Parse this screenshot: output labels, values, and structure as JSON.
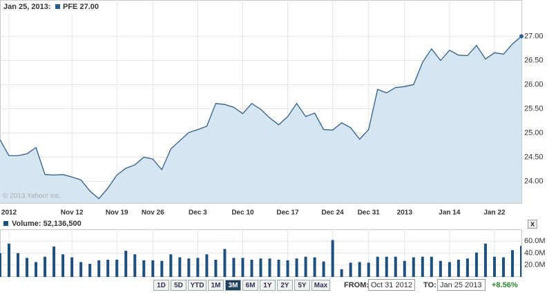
{
  "chart_data": [
    {
      "type": "area",
      "header_date": "Jan 25, 2013:",
      "watermark": "© 2013 Yahoo! Inc.",
      "categories": [
        null,
        "2012",
        null,
        null,
        null,
        null,
        null,
        null,
        "Nov 12",
        null,
        null,
        null,
        null,
        "Nov 19",
        null,
        null,
        null,
        "Nov 26",
        null,
        null,
        null,
        null,
        "Dec 3",
        null,
        null,
        null,
        null,
        "Dec 10",
        null,
        null,
        null,
        null,
        "Dec 17",
        null,
        null,
        null,
        null,
        "Dec 24",
        null,
        null,
        null,
        "Dec 31",
        null,
        null,
        null,
        "2013",
        null,
        null,
        null,
        null,
        "Jan 14",
        null,
        null,
        null,
        null,
        "Jan 22",
        null,
        null,
        null
      ],
      "series": [
        {
          "name": "PFE 27.00",
          "color": "#2d5d8c",
          "fill": "#d5e5f2",
          "values": [
            24.86,
            24.53,
            24.53,
            24.57,
            24.7,
            24.14,
            24.13,
            24.14,
            24.09,
            24.03,
            23.8,
            23.64,
            23.86,
            24.13,
            24.27,
            24.34,
            24.5,
            24.46,
            24.24,
            24.67,
            24.84,
            25.01,
            25.07,
            25.14,
            25.61,
            25.59,
            25.53,
            25.4,
            25.61,
            25.49,
            25.31,
            25.17,
            25.34,
            25.61,
            25.34,
            25.41,
            25.07,
            25.06,
            25.21,
            25.11,
            24.87,
            25.07,
            25.9,
            25.83,
            25.94,
            25.96,
            26.0,
            26.46,
            26.74,
            26.5,
            26.71,
            26.61,
            26.6,
            26.81,
            26.53,
            26.66,
            26.63,
            26.84,
            27.0
          ]
        }
      ],
      "ylim": [
        23.55,
        27.75
      ],
      "yticks": [
        {
          "value": 24,
          "label": "24.00"
        },
        {
          "value": 24.5,
          "label": "24.50"
        },
        {
          "value": 25,
          "label": "25.00"
        },
        {
          "value": 25.5,
          "label": "25.50"
        },
        {
          "value": 26,
          "label": "26.00"
        },
        {
          "value": 26.5,
          "label": "26.50"
        },
        {
          "value": 27,
          "label": "27.00"
        }
      ],
      "grid": true
    },
    {
      "type": "bar",
      "title": "Volume: 52,136,500",
      "color": "#1d4f80",
      "values": [
        40000000,
        56000000,
        40000000,
        32000000,
        25000000,
        34000000,
        51000000,
        38000000,
        33000000,
        25000000,
        22000000,
        28000000,
        29000000,
        29000000,
        44000000,
        38000000,
        28000000,
        28000000,
        27000000,
        38000000,
        33000000,
        31000000,
        32000000,
        38000000,
        29000000,
        47000000,
        32000000,
        32000000,
        29000000,
        31000000,
        31000000,
        29000000,
        28000000,
        31000000,
        34000000,
        33000000,
        26000000,
        62000000,
        13000000,
        24000000,
        25000000,
        24000000,
        34000000,
        34000000,
        34000000,
        27000000,
        33000000,
        34000000,
        34000000,
        27000000,
        25000000,
        29000000,
        31000000,
        41000000,
        56000000,
        34000000,
        33000000,
        45000000,
        52136500
      ],
      "ylim": [
        0,
        80000000
      ],
      "yticks": [
        {
          "value": 20000000,
          "label": "20.0M"
        },
        {
          "value": 40000000,
          "label": "40.0M"
        },
        {
          "value": 60000000,
          "label": "60.0M"
        }
      ],
      "grid": true
    }
  ],
  "controls": {
    "ranges": [
      "1D",
      "5D",
      "YTD",
      "1M",
      "3M",
      "6M",
      "1Y",
      "2Y",
      "5Y",
      "Max"
    ],
    "selected": "3M",
    "from_label": "FROM:",
    "from": "Oct 31 2012",
    "to_label": "TO:",
    "to": "Jan 25 2013",
    "change": "+8.56%",
    "close": "x"
  }
}
